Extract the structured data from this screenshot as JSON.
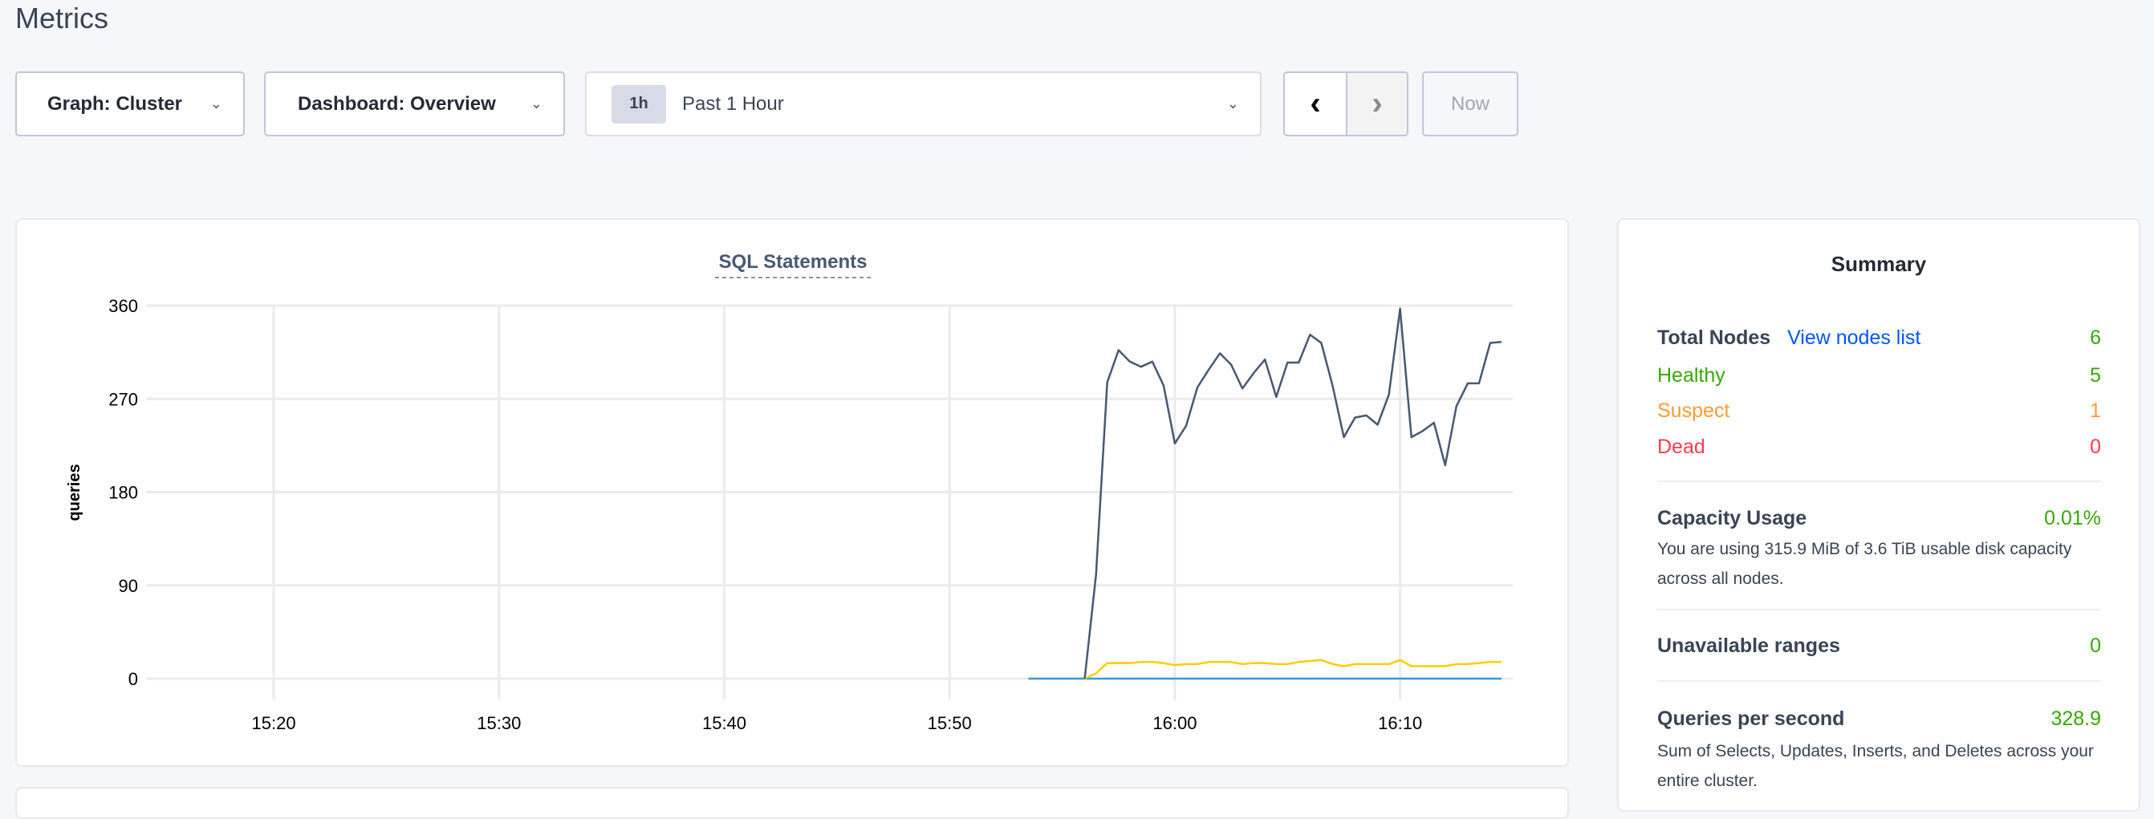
{
  "page": {
    "title": "Metrics"
  },
  "controls": {
    "graph": "Graph: Cluster",
    "dashboard": "Dashboard: Overview",
    "time_badge": "1h",
    "time_range": "Past 1 Hour",
    "prev_label": "‹",
    "next_label": "›",
    "now_label": "Now"
  },
  "icons": {
    "dropdown": "chevron-down-icon",
    "prev": "chevron-left-icon",
    "next": "chevron-right-icon"
  },
  "chart_data": {
    "type": "line",
    "title": "SQL Statements",
    "ylabel": "queries",
    "ylim": [
      0,
      360
    ],
    "yticks": [
      0,
      90,
      180,
      270,
      360
    ],
    "xlim": [
      "15:14:20",
      "16:15:00"
    ],
    "xticks": [
      "15:20",
      "15:30",
      "15:40",
      "15:50",
      "16:00",
      "16:10"
    ],
    "grid": true,
    "x": [
      "15:56:00",
      "15:56:30",
      "15:57:00",
      "15:57:30",
      "15:58:00",
      "15:58:30",
      "15:59:00",
      "15:59:30",
      "16:00:00",
      "16:00:30",
      "16:01:00",
      "16:01:30",
      "16:02:00",
      "16:02:30",
      "16:03:00",
      "16:03:30",
      "16:04:00",
      "16:04:30",
      "16:05:00",
      "16:05:30",
      "16:06:00",
      "16:06:30",
      "16:07:00",
      "16:07:30",
      "16:08:00",
      "16:08:30",
      "16:09:00",
      "16:09:30",
      "16:10:00",
      "16:10:30",
      "16:11:00",
      "16:11:30",
      "16:12:00",
      "16:12:30",
      "16:13:00",
      "16:13:30",
      "16:14:00",
      "16:14:30"
    ],
    "series": [
      {
        "color": "#475872",
        "values": [
          0,
          100,
          286,
          317,
          306,
          301,
          306,
          283,
          227,
          244,
          281,
          298,
          314,
          303,
          280,
          295,
          308,
          272,
          305,
          305,
          332,
          324,
          283,
          233,
          252,
          254,
          245,
          274,
          357,
          233,
          239,
          247,
          206,
          263,
          285,
          285,
          324,
          325
        ]
      },
      {
        "color": "#ffcd02",
        "values": [
          0,
          5,
          15,
          15,
          15,
          16,
          16,
          15,
          13,
          14,
          14,
          16,
          16,
          16,
          14,
          15,
          15,
          14,
          14,
          16,
          17,
          18,
          14,
          12,
          14,
          14,
          14,
          14,
          18,
          12,
          12,
          12,
          12,
          14,
          14,
          15,
          16,
          16
        ]
      },
      {
        "color": "#3a9ad9",
        "x": [
          "15:53:30",
          "16:14:30"
        ],
        "values": [
          0,
          0
        ]
      }
    ]
  },
  "summary": {
    "title": "Summary",
    "total_nodes_label": "Total Nodes",
    "view_nodes_link": "View nodes list",
    "total_nodes": "6",
    "healthy_label": "Healthy",
    "healthy": "5",
    "suspect_label": "Suspect",
    "suspect": "1",
    "dead_label": "Dead",
    "dead": "0",
    "capacity_label": "Capacity Usage",
    "capacity": "0.01%",
    "capacity_desc": "You are using 315.9 MiB of 3.6 TiB usable disk capacity across all nodes.",
    "unavailable_label": "Unavailable ranges",
    "unavailable": "0",
    "qps_label": "Queries per second",
    "qps": "328.9",
    "qps_desc": "Sum of Selects, Updates, Inserts, and Deletes across your entire cluster."
  },
  "colors": {
    "healthy": "#37a806",
    "suspect": "#ff9b33",
    "dead": "#ff3b4e",
    "link": "#0055ff"
  }
}
